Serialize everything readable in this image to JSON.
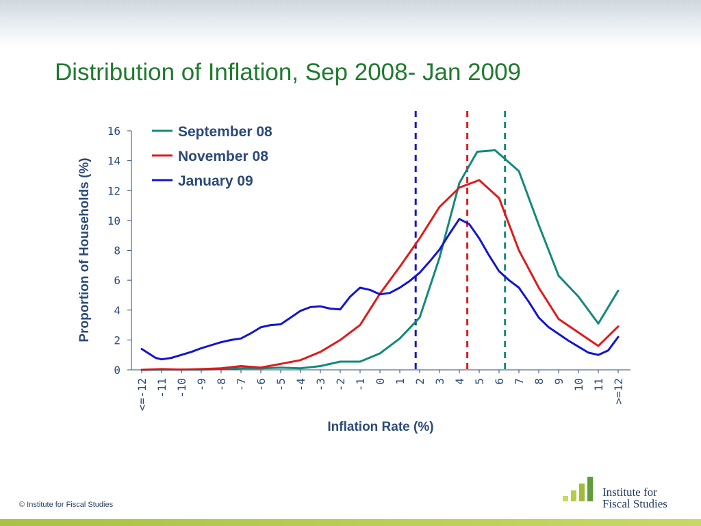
{
  "slide": {
    "title": "Distribution of Inflation, Sep 2008- Jan 2009",
    "footer": "© Institute for Fiscal Studies",
    "logo_line1": "Institute for",
    "logo_line2": "Fiscal Studies"
  },
  "colors": {
    "title": "#1f7a2e",
    "sep": "#13897a",
    "nov": "#e01a1a",
    "jan": "#1414d0",
    "axis": "#2b4a78",
    "band": "#a9c23f"
  },
  "chart_data": {
    "type": "line",
    "xlabel": "Inflation Rate (%)",
    "ylabel": "Proportion of Households (%)",
    "ylim": [
      0,
      16
    ],
    "yticks": [
      "0",
      "2",
      "4",
      "6",
      "8",
      "10",
      "12",
      "14",
      "16"
    ],
    "categories": [
      "<=-12",
      "-11",
      "-10",
      "-9",
      "-8",
      "-7",
      "-6",
      "-5",
      "-4",
      "-3",
      "-2",
      "-1",
      "0",
      "1",
      "2",
      "3",
      "4",
      "5",
      "6",
      "7",
      "8",
      "9",
      "10",
      "11",
      ">=12"
    ],
    "legend_position": "top-left",
    "grid": false,
    "series": [
      {
        "name": "September 08",
        "color": "#13897a",
        "points": [
          [
            -12,
            0
          ],
          [
            -11,
            0.02
          ],
          [
            -10,
            0.02
          ],
          [
            -9,
            0.02
          ],
          [
            -8,
            0.05
          ],
          [
            -7,
            0.1
          ],
          [
            -6,
            0.1
          ],
          [
            -5,
            0.15
          ],
          [
            -4,
            0.1
          ],
          [
            -3,
            0.25
          ],
          [
            -2,
            0.55
          ],
          [
            -1,
            0.55
          ],
          [
            0,
            1.1
          ],
          [
            1,
            2.1
          ],
          [
            2,
            3.5
          ],
          [
            3,
            7.5
          ],
          [
            4,
            12.5
          ],
          [
            4.9,
            14.6
          ],
          [
            5.8,
            14.7
          ],
          [
            7,
            13.3
          ],
          [
            8,
            9.7
          ],
          [
            9,
            6.3
          ],
          [
            10,
            4.9
          ],
          [
            11,
            3.1
          ],
          [
            12,
            5.3
          ]
        ]
      },
      {
        "name": "November 08",
        "color": "#e01a1a",
        "points": [
          [
            -12,
            0
          ],
          [
            -11,
            0.05
          ],
          [
            -10,
            0.02
          ],
          [
            -9,
            0.05
          ],
          [
            -8,
            0.1
          ],
          [
            -7,
            0.25
          ],
          [
            -6,
            0.15
          ],
          [
            -5,
            0.4
          ],
          [
            -4,
            0.65
          ],
          [
            -3,
            1.2
          ],
          [
            -2,
            2
          ],
          [
            -1,
            3
          ],
          [
            0,
            5.1
          ],
          [
            1,
            6.9
          ],
          [
            2,
            8.8
          ],
          [
            3,
            10.9
          ],
          [
            4,
            12.2
          ],
          [
            5,
            12.7
          ],
          [
            6,
            11.5
          ],
          [
            7,
            8
          ],
          [
            8,
            5.5
          ],
          [
            9,
            3.4
          ],
          [
            10,
            2.5
          ],
          [
            11,
            1.6
          ],
          [
            12,
            2.9
          ]
        ]
      },
      {
        "name": "January 09",
        "color": "#1414d0",
        "points": [
          [
            -12,
            1.4
          ],
          [
            -11.3,
            0.8
          ],
          [
            -11,
            0.7
          ],
          [
            -10.5,
            0.8
          ],
          [
            -10,
            1
          ],
          [
            -9.5,
            1.2
          ],
          [
            -9,
            1.45
          ],
          [
            -8.5,
            1.65
          ],
          [
            -8,
            1.85
          ],
          [
            -7.5,
            2
          ],
          [
            -7,
            2.1
          ],
          [
            -6.5,
            2.45
          ],
          [
            -6,
            2.85
          ],
          [
            -5.5,
            3
          ],
          [
            -5,
            3.05
          ],
          [
            -4.5,
            3.5
          ],
          [
            -4,
            3.95
          ],
          [
            -3.5,
            4.2
          ],
          [
            -3,
            4.25
          ],
          [
            -2.5,
            4.1
          ],
          [
            -2,
            4.05
          ],
          [
            -1.5,
            4.9
          ],
          [
            -1,
            5.5
          ],
          [
            -0.5,
            5.35
          ],
          [
            0,
            5.05
          ],
          [
            0.5,
            5.15
          ],
          [
            1,
            5.5
          ],
          [
            1.5,
            5.95
          ],
          [
            2,
            6.5
          ],
          [
            2.5,
            7.25
          ],
          [
            3,
            8.05
          ],
          [
            3.5,
            9.1
          ],
          [
            4,
            10.1
          ],
          [
            4.5,
            9.75
          ],
          [
            5,
            8.8
          ],
          [
            5.5,
            7.65
          ],
          [
            6,
            6.6
          ],
          [
            6.5,
            6
          ],
          [
            7,
            5.5
          ],
          [
            7.5,
            4.55
          ],
          [
            8,
            3.5
          ],
          [
            8.5,
            2.85
          ],
          [
            9,
            2.4
          ],
          [
            9.5,
            1.95
          ],
          [
            10,
            1.55
          ],
          [
            10.5,
            1.15
          ],
          [
            11,
            1
          ],
          [
            11.5,
            1.3
          ],
          [
            12,
            2.2
          ]
        ]
      }
    ],
    "reference_lines": [
      {
        "x": 1.8,
        "color": "#1414d0",
        "style": "dashed"
      },
      {
        "x": 4.4,
        "color": "#e01a1a",
        "style": "dashed"
      },
      {
        "x": 6.3,
        "color": "#13897a",
        "style": "dashed"
      }
    ]
  }
}
